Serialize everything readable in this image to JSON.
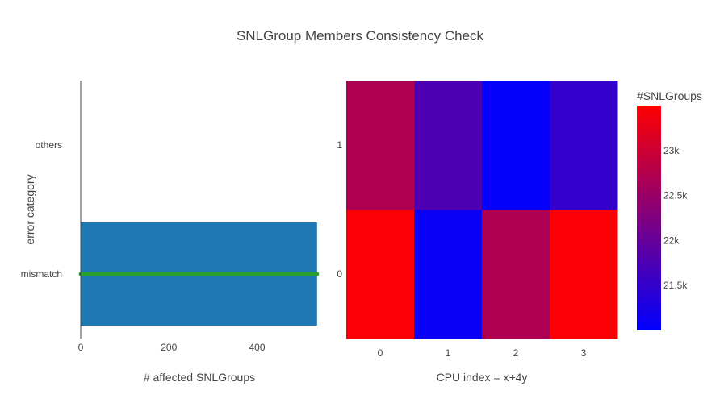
{
  "title": "SNLGroup Members Consistency Check",
  "colors": {
    "bar": "#1f77b4",
    "line": "#2ca02c",
    "axis": "#444444",
    "colorscale_low": "#0000ff",
    "colorscale_high": "#ff0000"
  },
  "chart_data": [
    {
      "type": "bar",
      "orientation": "horizontal",
      "categories": [
        "mismatch",
        "others"
      ],
      "values": [
        536,
        0
      ],
      "xlabel": "# affected SNLGroups",
      "ylabel": "error category",
      "xlim": [
        0,
        540
      ],
      "xticks": [
        0,
        200,
        400
      ],
      "overlay_line": {
        "category": "mismatch",
        "x": [
          0,
          536
        ]
      }
    },
    {
      "type": "heatmap",
      "x": [
        0,
        1,
        2,
        3
      ],
      "y": [
        0,
        1
      ],
      "z": [
        [
          23450,
          21100,
          22700,
          23450
        ],
        [
          22700,
          21750,
          21050,
          21500
        ]
      ],
      "xlabel": "CPU index = x+4y",
      "ylabel": "",
      "colorbar": {
        "title": "#SNLGroups",
        "range": [
          21000,
          23500
        ],
        "ticks": [
          21500,
          22000,
          22500,
          23000
        ],
        "ticktext": [
          "21.5k",
          "22k",
          "22.5k",
          "23k"
        ]
      }
    }
  ]
}
